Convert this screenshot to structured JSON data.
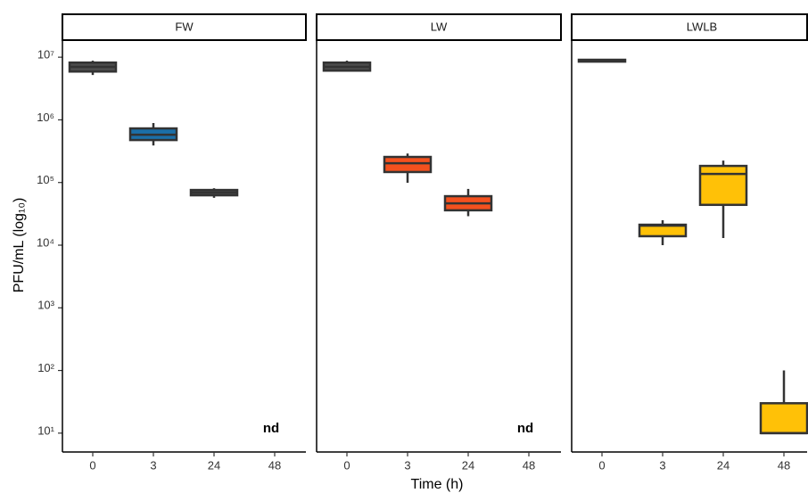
{
  "chart_data": [
    {
      "type": "box",
      "title": "FW",
      "ylabel": "PFU/mL (log₁₀)",
      "log": true,
      "ylim": [
        5,
        20000000
      ],
      "yticks": [
        {
          "value": 10,
          "label": "10¹"
        },
        {
          "value": 100,
          "label": "10²"
        },
        {
          "value": 1000,
          "label": "10³"
        },
        {
          "value": 10000,
          "label": "10⁴"
        },
        {
          "value": 100000,
          "label": "10⁵"
        },
        {
          "value": 1000000,
          "label": "10⁶"
        },
        {
          "value": 10000000,
          "label": "10⁷"
        }
      ],
      "categories": [
        "0",
        "3",
        "24",
        "48"
      ],
      "boxes": [
        {
          "min": 5200000,
          "q1": 5900000,
          "median": 7000000,
          "q3": 8200000,
          "max": 8800000,
          "color": "#4d4d4d"
        },
        {
          "min": 390000,
          "q1": 476000,
          "median": 580000,
          "q3": 730000,
          "max": 890000,
          "color": "#1b6fa8"
        },
        {
          "min": 57000,
          "q1": 62500,
          "median": 69000,
          "q3": 76000,
          "max": 81000,
          "color": "#4d4d4d"
        },
        {
          "label": "nd"
        }
      ]
    },
    {
      "type": "box",
      "title": "LW",
      "xlabel": "Time (h)",
      "categories": [
        "0",
        "3",
        "24",
        "48"
      ],
      "boxes": [
        {
          "min": 5900000,
          "q1": 6100000,
          "median": 7000000,
          "q3": 8200000,
          "max": 8800000,
          "color": "#4d4d4d"
        },
        {
          "min": 99000,
          "q1": 147000,
          "median": 203000,
          "q3": 256000,
          "max": 290000,
          "color": "#f4511e"
        },
        {
          "min": 29000,
          "q1": 36000,
          "median": 46500,
          "q3": 60500,
          "max": 79000,
          "color": "#f4511e"
        },
        {
          "label": "nd"
        }
      ]
    },
    {
      "type": "box",
      "title": "LWLB",
      "categories": [
        "0",
        "3",
        "24",
        "48"
      ],
      "boxes": [
        {
          "min": 8500000,
          "q1": 8500000,
          "median": 8800000,
          "q3": 9100000,
          "max": 9100000,
          "color": "#4d4d4d"
        },
        {
          "min": 10000,
          "q1": 13900,
          "median": 20500,
          "q3": 21200,
          "max": 25000,
          "color": "#ffc107"
        },
        {
          "min": 13000,
          "q1": 44000,
          "median": 137000,
          "q3": 184000,
          "max": 224000,
          "color": "#ffc107"
        },
        {
          "min": 10,
          "q1": 10,
          "median": 10,
          "q3": 30,
          "max": 100,
          "color": "#ffc107"
        }
      ]
    }
  ]
}
